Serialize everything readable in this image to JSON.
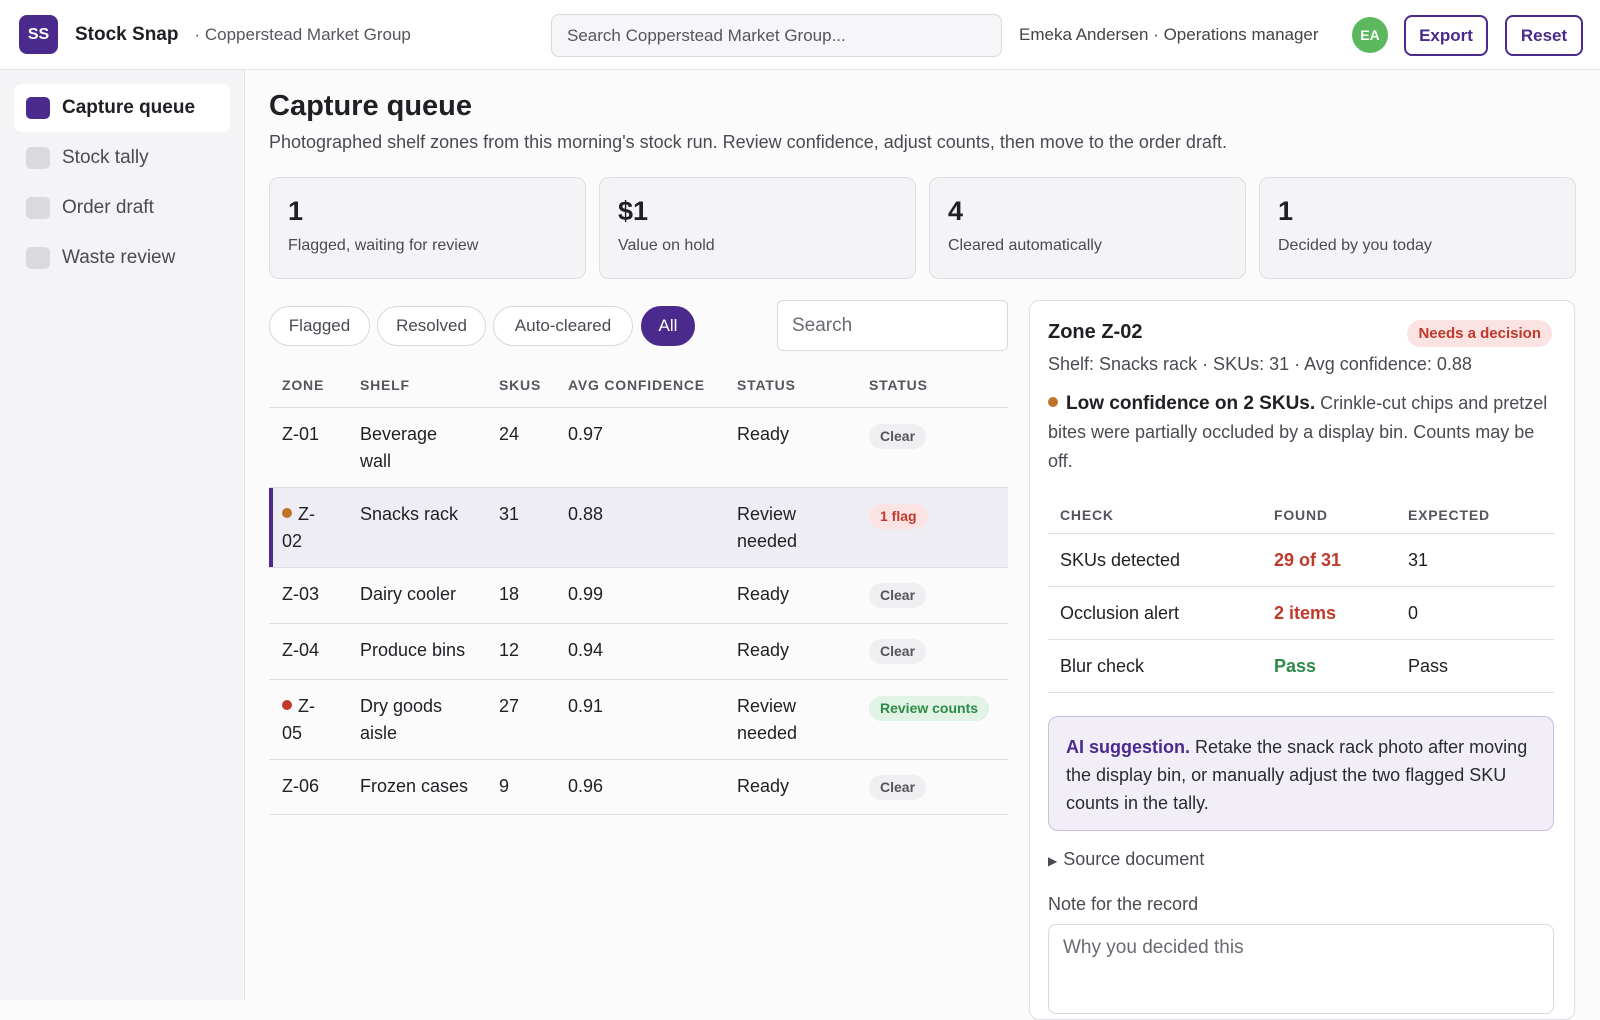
{
  "header": {
    "logo_initials": "SS",
    "app_name": "Stock Snap",
    "org_name": "· Copperstead Market Group",
    "search_placeholder": "Search Copperstead Market Group...",
    "user": "Emeka Andersen · Operations manager",
    "avatar_initials": "EA",
    "export_label": "Export",
    "reset_label": "Reset"
  },
  "sidebar": {
    "items": [
      {
        "label": "Capture queue",
        "active": true
      },
      {
        "label": "Stock tally",
        "active": false
      },
      {
        "label": "Order draft",
        "active": false
      },
      {
        "label": "Waste review",
        "active": false
      }
    ]
  },
  "page": {
    "title": "Capture queue",
    "subtitle": "Photographed shelf zones from this morning's stock run. Review confidence, adjust counts, then move to the order draft."
  },
  "stats": [
    {
      "value": "1",
      "label": "Flagged, waiting for review"
    },
    {
      "value": "$1",
      "label": "Value on hold"
    },
    {
      "value": "4",
      "label": "Cleared automatically"
    },
    {
      "value": "1",
      "label": "Decided by you today"
    }
  ],
  "filters": {
    "pills": [
      "Flagged",
      "Resolved",
      "Auto-cleared",
      "All"
    ],
    "active": "All",
    "search_placeholder": "Search"
  },
  "table": {
    "headers": [
      "ZONE",
      "SHELF",
      "SKUS",
      "AVG CONFIDENCE",
      "STATUS",
      "STATUS"
    ],
    "rows": [
      {
        "zone": "Z-01",
        "shelf": "Beverage wall",
        "skus": "24",
        "conf": "0.97",
        "status": "Ready",
        "badge": "Clear",
        "badge_kind": "clear",
        "dot": ""
      },
      {
        "zone": "Z-02",
        "shelf": "Snacks rack",
        "skus": "31",
        "conf": "0.88",
        "status": "Review needed",
        "badge": "1 flag",
        "badge_kind": "flag",
        "dot": "#c0722b"
      },
      {
        "zone": "Z-03",
        "shelf": "Dairy cooler",
        "skus": "18",
        "conf": "0.99",
        "status": "Ready",
        "badge": "Clear",
        "badge_kind": "clear",
        "dot": ""
      },
      {
        "zone": "Z-04",
        "shelf": "Produce bins",
        "skus": "12",
        "conf": "0.94",
        "status": "Ready",
        "badge": "Clear",
        "badge_kind": "clear",
        "dot": ""
      },
      {
        "zone": "Z-05",
        "shelf": "Dry goods aisle",
        "skus": "27",
        "conf": "0.91",
        "status": "Review needed",
        "badge": "Review counts",
        "badge_kind": "review",
        "dot": "#c0392b"
      },
      {
        "zone": "Z-06",
        "shelf": "Frozen cases",
        "skus": "9",
        "conf": "0.96",
        "status": "Ready",
        "badge": "Clear",
        "badge_kind": "clear",
        "dot": ""
      }
    ]
  },
  "detail": {
    "title": "Zone Z-02",
    "badge": "Needs a decision",
    "meta": "Shelf: Snacks rack · SKUs: 31 · Avg confidence: 0.88",
    "alert_title": "Low confidence on 2 SKUs.",
    "alert_body": "Crinkle-cut chips and pretzel bites were partially occluded by a display bin. Counts may be off.",
    "check_headers": [
      "CHECK",
      "FOUND",
      "EXPECTED"
    ],
    "checks": [
      {
        "check": "SKUs detected",
        "found": "29 of 31",
        "expected": "31",
        "tone": "red"
      },
      {
        "check": "Occlusion alert",
        "found": "2 items",
        "expected": "0",
        "tone": "red"
      },
      {
        "check": "Blur check",
        "found": "Pass",
        "expected": "Pass",
        "tone": "green"
      }
    ],
    "suggestion_title": "AI suggestion.",
    "suggestion_body": "Retake the snack rack photo after moving the display bin, or manually adjust the two flagged SKU counts in the tally.",
    "source_label": "Source document",
    "note_label": "Note for the record",
    "note_placeholder": "Why you decided this"
  },
  "colors": {
    "accent": "#4a2a8c",
    "danger": "#c0392b",
    "success": "#2e8b47",
    "warning_dot": "#c0722b"
  }
}
